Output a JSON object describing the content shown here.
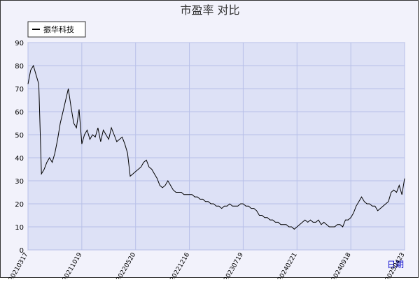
{
  "chart_data": {
    "type": "line",
    "title": "市盈率  对比",
    "x_label": "日期",
    "legend_position": "top-left",
    "grid": true,
    "categories": [
      "20210317",
      null,
      null,
      null,
      null,
      null,
      null,
      null,
      null,
      null,
      null,
      null,
      null,
      null,
      null,
      null,
      null,
      null,
      null,
      null,
      "20211019",
      null,
      null,
      null,
      null,
      null,
      null,
      null,
      null,
      null,
      null,
      null,
      null,
      null,
      null,
      null,
      null,
      null,
      null,
      null,
      "20220520",
      null,
      null,
      null,
      null,
      null,
      null,
      null,
      null,
      null,
      null,
      null,
      null,
      null,
      null,
      null,
      null,
      null,
      null,
      null,
      "20221216",
      null,
      null,
      null,
      null,
      null,
      null,
      null,
      null,
      null,
      null,
      null,
      null,
      null,
      null,
      null,
      null,
      null,
      null,
      null,
      "20230719",
      null,
      null,
      null,
      null,
      null,
      null,
      null,
      null,
      null,
      null,
      null,
      null,
      null,
      null,
      null,
      null,
      null,
      null,
      null,
      "20240221",
      null,
      null,
      null,
      null,
      null,
      null,
      null,
      null,
      null,
      null,
      null,
      null,
      null,
      null,
      null,
      null,
      null,
      null,
      null,
      "20240918",
      null,
      null,
      null,
      null,
      null,
      null,
      null,
      null,
      null,
      null,
      null,
      null,
      null,
      null,
      null,
      null,
      null,
      null,
      null,
      "20250423"
    ],
    "series": [
      {
        "name": "振华科技",
        "color": "#000000",
        "values": [
          72,
          78,
          80,
          76,
          72,
          33,
          35,
          38,
          40,
          38,
          42,
          48,
          55,
          60,
          65,
          70,
          62,
          55,
          53,
          61,
          46,
          50,
          52,
          48,
          50,
          49,
          53,
          47,
          52,
          50,
          48,
          53,
          50,
          47,
          48,
          49,
          46,
          42,
          32,
          33,
          34,
          35,
          36,
          38,
          39,
          36,
          35,
          33,
          31,
          28,
          27,
          28,
          30,
          28,
          26,
          25,
          25,
          25,
          24,
          24,
          24,
          24,
          23,
          23,
          22,
          22,
          21,
          21,
          20,
          20,
          19,
          19,
          18,
          19,
          19,
          20,
          19,
          19,
          19,
          20,
          20,
          19,
          19,
          18,
          18,
          17,
          15,
          15,
          14,
          14,
          13,
          13,
          12,
          12,
          11,
          11,
          11,
          10,
          10,
          9,
          10,
          11,
          12,
          13,
          12,
          13,
          12,
          12,
          13,
          11,
          12,
          11,
          10,
          10,
          10,
          11,
          11,
          10,
          13,
          13,
          14,
          16,
          19,
          21,
          23,
          21,
          20,
          20,
          19,
          19,
          17,
          18,
          19,
          20,
          21,
          25,
          26,
          25,
          28,
          24,
          31
        ]
      }
    ],
    "ylim": [
      0,
      90
    ],
    "yticks": [
      0,
      10,
      20,
      30,
      40,
      50,
      60,
      70,
      80,
      90
    ]
  }
}
